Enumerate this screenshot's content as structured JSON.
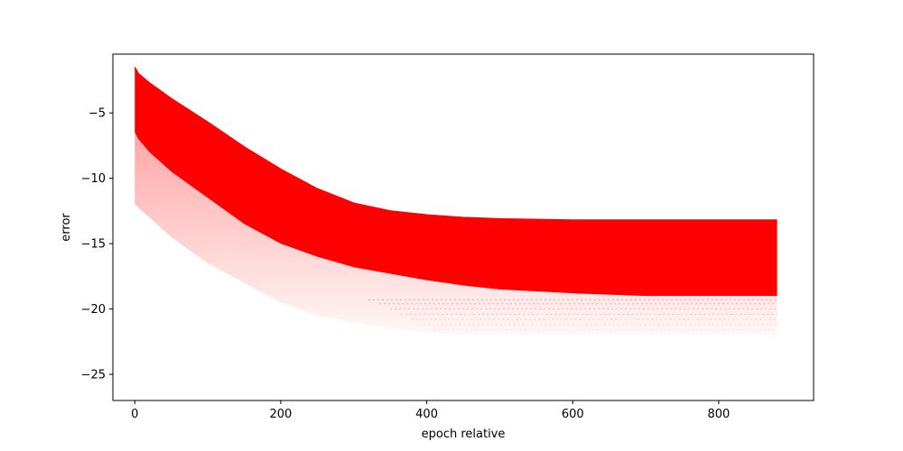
{
  "chart_data": {
    "type": "area",
    "title": "",
    "xlabel": "epoch relative",
    "ylabel": "error",
    "xlim": [
      -30,
      930
    ],
    "ylim": [
      -27,
      -0.5
    ],
    "grid": false,
    "legend": "none",
    "color": "#ff0000",
    "x_ticks": [
      0,
      200,
      400,
      600,
      800
    ],
    "x_tick_labels": [
      "0",
      "200",
      "400",
      "600",
      "800"
    ],
    "y_ticks": [
      -5,
      -10,
      -15,
      -20,
      -25
    ],
    "y_tick_labels": [
      "−5",
      "−10",
      "−15",
      "−20",
      "−25"
    ],
    "series": [
      {
        "role": "upper-envelope",
        "x": [
          0,
          5,
          20,
          50,
          100,
          150,
          200,
          250,
          300,
          350,
          400,
          450,
          500,
          600,
          700,
          800,
          880
        ],
        "y": [
          -1.5,
          -2.0,
          -2.7,
          -3.9,
          -5.7,
          -7.6,
          -9.3,
          -10.8,
          -11.9,
          -12.5,
          -12.8,
          -13.0,
          -13.1,
          -13.2,
          -13.2,
          -13.2,
          -13.2
        ]
      },
      {
        "role": "dense-lower-boundary",
        "x": [
          0,
          5,
          20,
          50,
          100,
          150,
          200,
          250,
          300,
          350,
          400,
          450,
          500,
          600,
          700,
          800,
          880
        ],
        "y": [
          -6.5,
          -7.0,
          -8.0,
          -9.5,
          -11.5,
          -13.5,
          -15.0,
          -16.0,
          -16.8,
          -17.3,
          -17.8,
          -18.2,
          -18.5,
          -18.8,
          -19.0,
          -19.0,
          -19.0
        ]
      },
      {
        "role": "sparse-minimum",
        "x": [
          0,
          20,
          50,
          100,
          150,
          200,
          250,
          300,
          350,
          400,
          450,
          500,
          600,
          700,
          800,
          880
        ],
        "y": [
          -12.0,
          -13.0,
          -14.5,
          -16.5,
          -18.0,
          -19.5,
          -20.5,
          -21.0,
          -21.5,
          -21.8,
          -22.0,
          -22.0,
          -22.0,
          -22.0,
          -22.0,
          -22.0
        ]
      }
    ]
  }
}
